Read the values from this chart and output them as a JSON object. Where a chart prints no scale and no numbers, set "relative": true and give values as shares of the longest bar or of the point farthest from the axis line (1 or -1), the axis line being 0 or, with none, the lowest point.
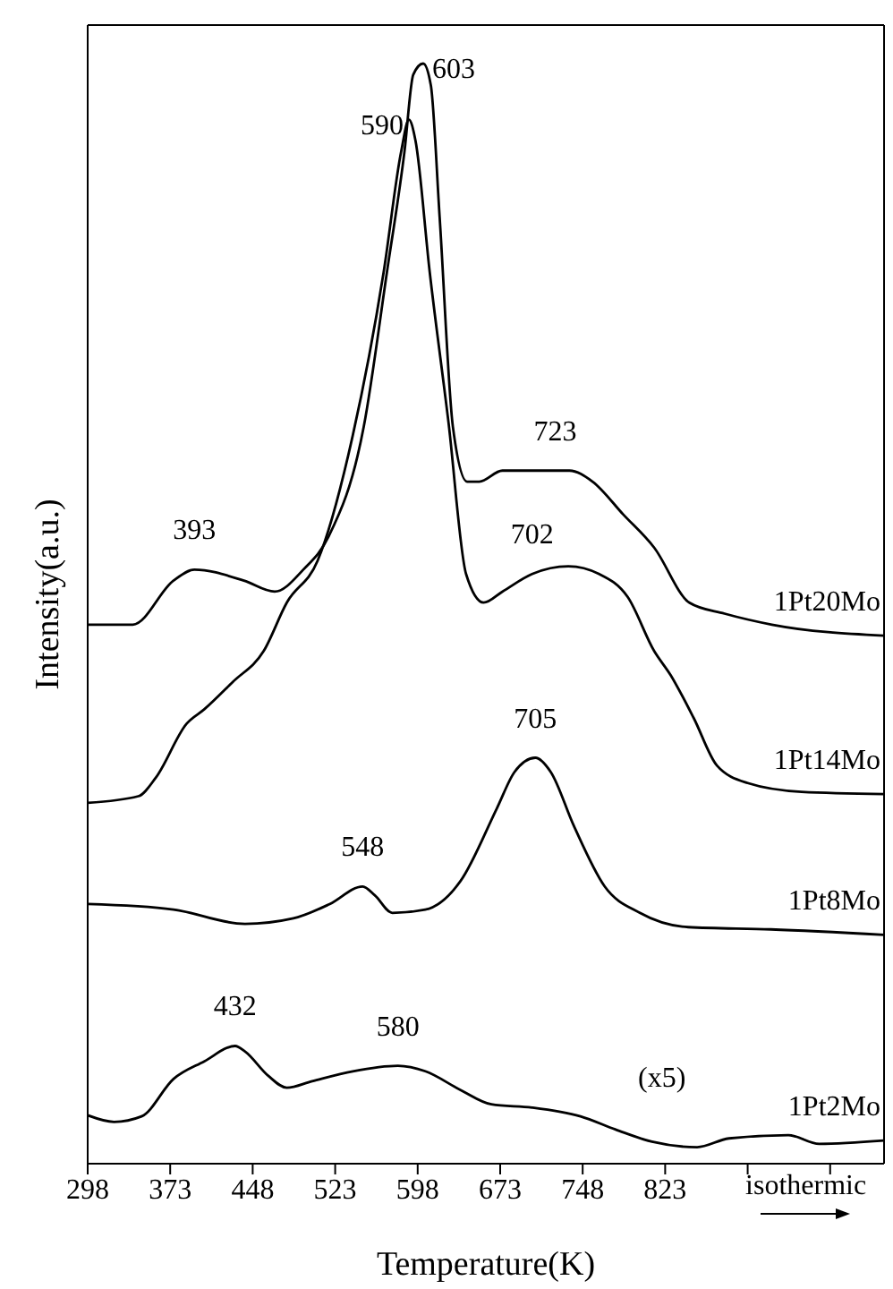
{
  "chart_data": {
    "type": "line",
    "relative": true,
    "xlabel": "Temperature(K)",
    "ylabel": "Intensity(a.u.)",
    "xlim": [
      298,
      1022
    ],
    "xticks": [
      298,
      373,
      448,
      523,
      598,
      673,
      748,
      823,
      {
        "value": 898,
        "label": null
      },
      {
        "value": 973,
        "label": null
      }
    ],
    "series": [
      {
        "name": "1Pt20Mo",
        "color": "#000000",
        "x": [
          298,
          339,
          376,
          395,
          440,
          468,
          494,
          517,
          549,
          570,
          586,
          594,
          603,
          610,
          618,
          630,
          643,
          654,
          675,
          703,
          736,
          757,
          785,
          813,
          845,
          877,
          920,
          1022
        ],
        "values": [
          0.49,
          0.49,
          0.53,
          0.54,
          0.53,
          0.52,
          0.54,
          0.57,
          0.67,
          0.81,
          0.92,
          0.99,
          1.0,
          0.98,
          0.86,
          0.67,
          0.62,
          0.62,
          0.63,
          0.63,
          0.63,
          0.62,
          0.59,
          0.56,
          0.51,
          0.5,
          0.49,
          0.48
        ]
      },
      {
        "name": "1Pt14Mo",
        "color": "#000000",
        "x": [
          298,
          344,
          360,
          388,
          404,
          430,
          458,
          479,
          507,
          539,
          567,
          583,
          590,
          596,
          609,
          626,
          642,
          658,
          675,
          702,
          735,
          763,
          789,
          813,
          828,
          849,
          870,
          898,
          947,
          1022
        ],
        "values": [
          0.328,
          0.334,
          0.351,
          0.4,
          0.413,
          0.438,
          0.466,
          0.51,
          0.548,
          0.662,
          0.81,
          0.92,
          0.949,
          0.93,
          0.81,
          0.674,
          0.536,
          0.51,
          0.52,
          0.536,
          0.543,
          0.536,
          0.515,
          0.466,
          0.444,
          0.405,
          0.362,
          0.346,
          0.338,
          0.336
        ]
      },
      {
        "name": "1Pt8Mo",
        "color": "#000000",
        "x": [
          298,
          376,
          441,
          485,
          518,
          548,
          559,
          575,
          605,
          637,
          670,
          686,
          705,
          719,
          740,
          768,
          800,
          844,
          919,
          1022
        ],
        "values": [
          0.236,
          0.231,
          0.218,
          0.223,
          0.236,
          0.252,
          0.244,
          0.228,
          0.231,
          0.257,
          0.323,
          0.356,
          0.369,
          0.356,
          0.307,
          0.252,
          0.228,
          0.215,
          0.213,
          0.208
        ]
      },
      {
        "name": "1Pt2Mo",
        "color": "#000000",
        "x": [
          298,
          322,
          347,
          376,
          404,
          432,
          441,
          462,
          479,
          502,
          539,
          580,
          605,
          637,
          665,
          702,
          746,
          778,
          811,
          852,
          881,
          935,
          963,
          1022
        ],
        "values": [
          0.044,
          0.038,
          0.043,
          0.077,
          0.093,
          0.107,
          0.102,
          0.08,
          0.069,
          0.075,
          0.084,
          0.089,
          0.084,
          0.067,
          0.054,
          0.051,
          0.043,
          0.031,
          0.02,
          0.015,
          0.023,
          0.026,
          0.018,
          0.021
        ]
      }
    ],
    "annotations": [
      {
        "text": "603",
        "x": 603,
        "y": 1.0
      },
      {
        "text": "590",
        "x": 590,
        "y": 0.949
      },
      {
        "text": "393",
        "x": 395,
        "y": 0.54
      },
      {
        "text": "723",
        "x": 723,
        "y": 0.63
      },
      {
        "text": "702",
        "x": 702,
        "y": 0.536
      },
      {
        "text": "705",
        "x": 705,
        "y": 0.369
      },
      {
        "text": "548",
        "x": 548,
        "y": 0.252
      },
      {
        "text": "432",
        "x": 432,
        "y": 0.107
      },
      {
        "text": "580",
        "x": 580,
        "y": 0.089
      },
      "(x5)",
      "isothermic"
    ]
  }
}
